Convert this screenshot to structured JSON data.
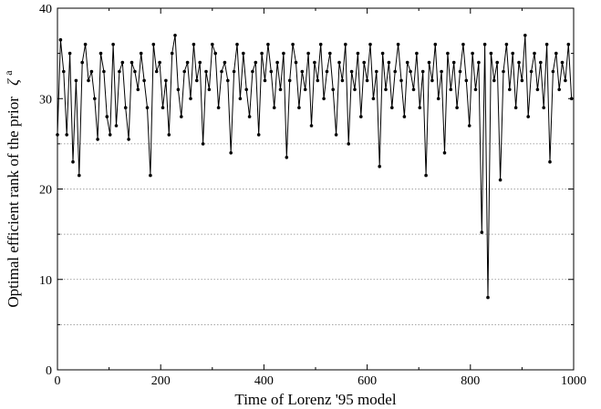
{
  "chart_data": {
    "type": "line",
    "title": "",
    "xlabel": "Time of Lorenz '95 model",
    "ylabel": "Optimal efficient rank of the prior",
    "ylabel_symbol": "ζ",
    "ylabel_superscript": "a",
    "xlim": [
      0,
      1000
    ],
    "ylim": [
      0,
      40
    ],
    "xticks": [
      0,
      200,
      400,
      600,
      800,
      1000
    ],
    "yticks": [
      0,
      10,
      20,
      30,
      40
    ],
    "grid": {
      "horizontal_dotted": [
        5,
        10,
        15,
        20,
        25
      ],
      "vertical": false
    },
    "legend": "none",
    "colors": {
      "line": "#000000",
      "marker": "#000000",
      "grid": "#888888"
    },
    "series": [
      {
        "marker": "filled-circle",
        "x": [
          0,
          6,
          12,
          18,
          24,
          30,
          36,
          42,
          48,
          54,
          60,
          66,
          72,
          78,
          84,
          90,
          96,
          102,
          108,
          114,
          120,
          126,
          132,
          138,
          144,
          150,
          156,
          162,
          168,
          174,
          180,
          186,
          192,
          198,
          204,
          210,
          216,
          222,
          228,
          234,
          240,
          246,
          252,
          258,
          264,
          270,
          276,
          282,
          288,
          294,
          300,
          306,
          312,
          318,
          324,
          330,
          336,
          342,
          348,
          354,
          360,
          366,
          372,
          378,
          384,
          390,
          396,
          402,
          408,
          414,
          420,
          426,
          432,
          438,
          444,
          450,
          456,
          462,
          468,
          474,
          480,
          486,
          492,
          498,
          504,
          510,
          516,
          522,
          528,
          534,
          540,
          546,
          552,
          558,
          564,
          570,
          576,
          582,
          588,
          594,
          600,
          606,
          612,
          618,
          624,
          630,
          636,
          642,
          648,
          654,
          660,
          666,
          672,
          678,
          684,
          690,
          696,
          702,
          708,
          714,
          720,
          726,
          732,
          738,
          744,
          750,
          756,
          762,
          768,
          774,
          780,
          786,
          792,
          798,
          804,
          810,
          816,
          822,
          828,
          834,
          840,
          846,
          852,
          858,
          864,
          870,
          876,
          882,
          888,
          894,
          900,
          906,
          912,
          918,
          924,
          930,
          936,
          942,
          948,
          954,
          960,
          966,
          972,
          978,
          984,
          990,
          996
        ],
        "y": [
          26,
          36.5,
          33,
          26,
          35,
          23,
          32,
          21.5,
          34,
          36,
          32,
          33,
          30,
          25.5,
          35,
          33,
          28,
          26,
          36,
          27,
          33,
          34,
          29,
          25.5,
          34,
          33,
          31,
          35,
          32,
          29,
          21.5,
          36,
          33,
          34,
          29,
          32,
          26,
          35,
          37,
          31,
          28,
          33,
          34,
          30,
          36,
          32,
          34,
          25,
          33,
          31,
          36,
          35,
          29,
          33,
          34,
          32,
          24,
          33,
          36,
          30,
          35,
          31,
          28,
          33,
          34,
          26,
          35,
          32,
          36,
          33,
          29,
          34,
          31,
          35,
          23.5,
          32,
          36,
          34,
          29,
          33,
          31,
          35,
          27,
          34,
          32,
          36,
          30,
          33,
          35,
          31,
          26,
          34,
          32,
          36,
          25,
          33,
          31,
          35,
          28,
          34,
          32,
          36,
          30,
          33,
          22.5,
          35,
          31,
          34,
          29,
          33,
          36,
          32,
          28,
          34,
          33,
          31,
          35,
          29,
          33,
          21.5,
          34,
          32,
          36,
          30,
          33,
          24,
          35,
          31,
          34,
          29,
          33,
          36,
          32,
          27,
          35,
          31,
          34,
          15.2,
          36,
          8,
          35,
          32,
          34,
          21,
          33,
          36,
          31,
          35,
          29,
          34,
          32,
          37,
          28,
          33,
          35,
          31,
          34,
          29,
          36,
          23,
          33,
          35,
          31,
          34,
          32,
          36,
          30
        ]
      }
    ]
  }
}
